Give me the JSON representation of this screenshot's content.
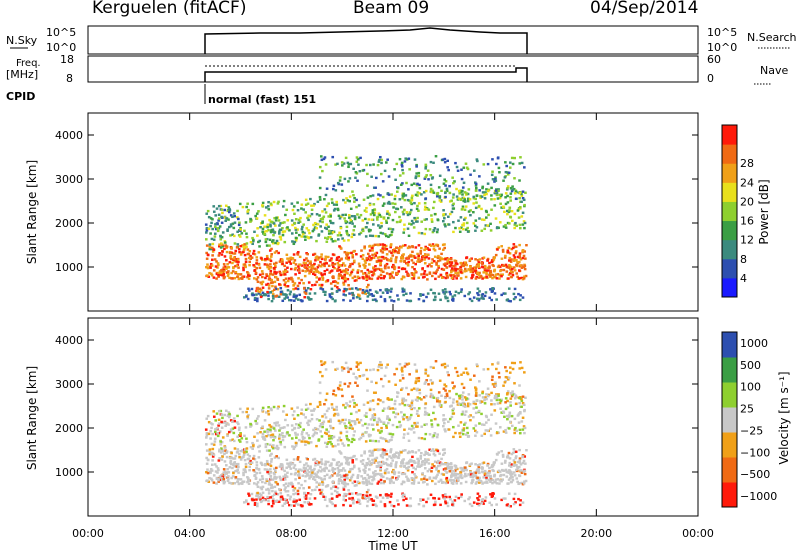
{
  "header": {
    "station": "Kerguelen (fitACF)",
    "beam": "Beam 09",
    "date": "04/Sep/2014"
  },
  "panels": {
    "nsky_label": "N.Sky",
    "nsearch_label": "N.Search",
    "freq_label_1": "Freq.",
    "freq_label_2": "[MHz]",
    "nave_label": "Nave",
    "cpid_label": "CPID",
    "cpid_text": "normal (fast) 151",
    "nsky_ticks": [
      "10^5",
      "10^0"
    ],
    "nsearch_ticks": [
      "10^5",
      "10^0"
    ],
    "freq_ticks": [
      "18",
      "8"
    ],
    "nave_ticks": [
      "60",
      "0"
    ]
  },
  "colors": {
    "power": [
      "#1a1aff",
      "#2d4fb0",
      "#3b8a7e",
      "#3a9e44",
      "#8ecf2f",
      "#e8e01c",
      "#f0a018",
      "#f06a14",
      "#ff1a0a"
    ],
    "velocity": [
      "#ff1a0a",
      "#f06a14",
      "#f0a018",
      "#c8c8c8",
      "#8ecf2f",
      "#3a9e44",
      "#2d4fb0"
    ]
  },
  "chart_data": [
    {
      "type": "heatmap",
      "name": "power",
      "xlabel": "",
      "ylabel": "Slant Range [km]",
      "xlim": [
        0,
        24
      ],
      "ylim": [
        0,
        4500
      ],
      "y_ticks": [
        "1000",
        "2000",
        "3000",
        "4000"
      ],
      "colorbar_label": "Power [dB]",
      "colorbar_ticks": [
        "4",
        "8",
        "12",
        "16",
        "20",
        "24",
        "28"
      ]
    },
    {
      "type": "heatmap",
      "name": "velocity",
      "xlabel": "Time UT",
      "ylabel": "Slant Range [km]",
      "xlim": [
        0,
        24
      ],
      "ylim": [
        0,
        4500
      ],
      "y_ticks": [
        "1000",
        "2000",
        "3000",
        "4000"
      ],
      "x_ticks": [
        "00:00",
        "04:00",
        "08:00",
        "12:00",
        "16:00",
        "20:00",
        "00:00"
      ],
      "colorbar_label": "Velocity [m s^-1]",
      "colorbar_ticks": [
        "1000",
        "500",
        "100",
        "25",
        "−25",
        "−100",
        "−500",
        "−1000"
      ]
    }
  ]
}
